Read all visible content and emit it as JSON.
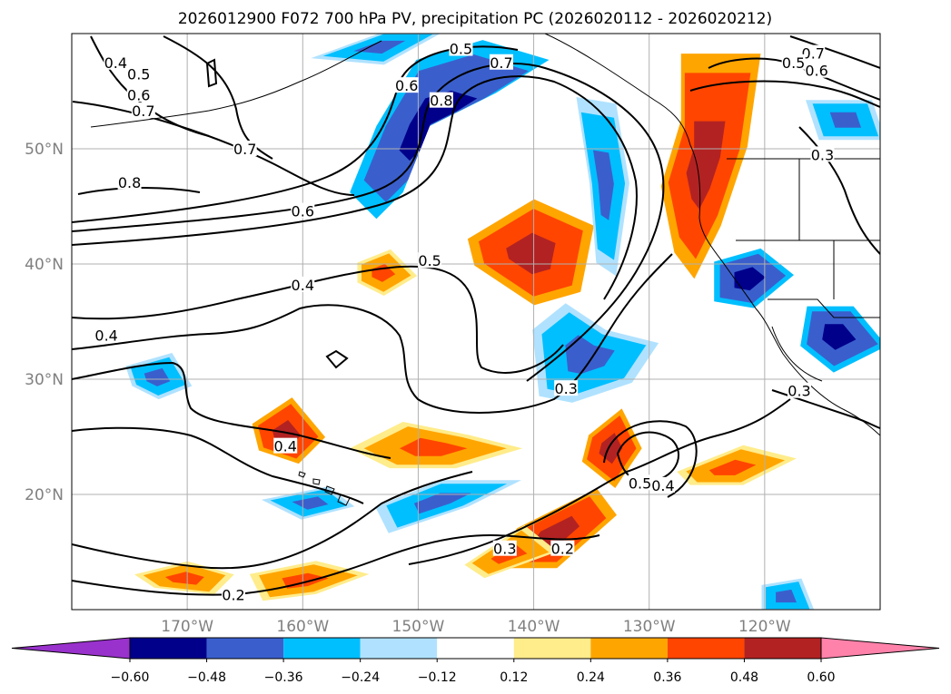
{
  "chart_data": {
    "type": "contour-map",
    "title": "2026012900 F072 700 hPa PV, precipitation PC (2026020112 - 2026020212)",
    "lon_range": [
      -180,
      -110
    ],
    "lat_range": [
      10,
      60
    ],
    "lat_ticks": [
      "20°N",
      "30°N",
      "40°N",
      "50°N"
    ],
    "lat_tick_values": [
      20,
      30,
      40,
      50
    ],
    "lon_ticks": [
      "170°W",
      "160°W",
      "150°W",
      "140°W",
      "130°W",
      "120°W"
    ],
    "lon_tick_values": [
      -170,
      -160,
      -150,
      -140,
      -130,
      -120
    ],
    "grid": true,
    "colorbar": {
      "ticks": [
        "−0.60",
        "−0.48",
        "−0.36",
        "−0.24",
        "−0.12",
        "0.12",
        "0.24",
        "0.36",
        "0.48",
        "0.60"
      ],
      "levels": [
        -0.6,
        -0.48,
        -0.36,
        -0.24,
        -0.12,
        0.12,
        0.24,
        0.36,
        0.48,
        0.6
      ],
      "colors": [
        "#9932cc",
        "#00008b",
        "#3a5fcd",
        "#00bfff",
        "#b0e2ff",
        "#ffffff",
        "#ffec8b",
        "#ffa500",
        "#ff4500",
        "#b22222",
        "#ff82ab"
      ],
      "extend": "both"
    },
    "contour_labels": [
      {
        "text": "0.5",
        "lon": -146.3,
        "lat": 58.7
      },
      {
        "text": "0.7",
        "lon": -142.8,
        "lat": 57.5
      },
      {
        "text": "0.6",
        "lon": -151.0,
        "lat": 55.5
      },
      {
        "text": "0.8",
        "lon": -148.0,
        "lat": 54.2
      },
      {
        "text": "0.4",
        "lon": -176.2,
        "lat": 57.5
      },
      {
        "text": "0.5",
        "lon": -174.2,
        "lat": 56.5
      },
      {
        "text": "0.6",
        "lon": -174.2,
        "lat": 54.7
      },
      {
        "text": "0.7",
        "lon": -173.8,
        "lat": 53.3
      },
      {
        "text": "0.7",
        "lon": -165.0,
        "lat": 50.0
      },
      {
        "text": "0.8",
        "lon": -175.0,
        "lat": 47.1
      },
      {
        "text": "0.6",
        "lon": -160.0,
        "lat": 44.6
      },
      {
        "text": "0.5",
        "lon": -149.0,
        "lat": 40.3
      },
      {
        "text": "0.4",
        "lon": -160.0,
        "lat": 38.2
      },
      {
        "text": "0.4",
        "lon": -177.0,
        "lat": 33.8
      },
      {
        "text": "0.3",
        "lon": -137.2,
        "lat": 29.2
      },
      {
        "text": "0.4",
        "lon": -161.5,
        "lat": 24.2
      },
      {
        "text": "0.5",
        "lon": -130.8,
        "lat": 21.0
      },
      {
        "text": "0.4",
        "lon": -128.8,
        "lat": 20.8
      },
      {
        "text": "0.3",
        "lon": -142.5,
        "lat": 15.3
      },
      {
        "text": "0.2",
        "lon": -137.5,
        "lat": 15.3
      },
      {
        "text": "0.2",
        "lon": -166.0,
        "lat": 11.3
      },
      {
        "text": "0.7",
        "lon": -115.8,
        "lat": 58.3
      },
      {
        "text": "0.5",
        "lon": -117.5,
        "lat": 57.5
      },
      {
        "text": "0.6",
        "lon": -115.5,
        "lat": 56.8
      },
      {
        "text": "0.3",
        "lon": -115.0,
        "lat": 49.5
      },
      {
        "text": "0.3",
        "lon": -117.0,
        "lat": 29.0
      }
    ],
    "precip_pc_patches": [
      {
        "value": 0.36,
        "peak": 0.48,
        "polygon": [
          [
            -127,
            57
          ],
          [
            -121,
            57
          ],
          [
            -122,
            50
          ],
          [
            -124,
            44
          ],
          [
            -126,
            40
          ],
          [
            -127.5,
            42
          ],
          [
            -128.5,
            47
          ],
          [
            -127,
            52
          ]
        ]
      },
      {
        "value": 0.36,
        "peak": 0.48,
        "polygon": [
          [
            -145,
            42
          ],
          [
            -140,
            45
          ],
          [
            -135.5,
            43
          ],
          [
            -136.5,
            38
          ],
          [
            -140,
            37
          ],
          [
            -144.5,
            40
          ]
        ]
      },
      {
        "value": 0.36,
        "peak": 0.48,
        "polygon": [
          [
            -143,
            14
          ],
          [
            -141,
            17
          ],
          [
            -135,
            20
          ],
          [
            -133.5,
            18
          ],
          [
            -138,
            14
          ]
        ]
      },
      {
        "value": 0.24,
        "peak": 0.36,
        "polygon": [
          [
            -145.5,
            14
          ],
          [
            -141,
            17
          ],
          [
            -138.5,
            15
          ],
          [
            -144,
            13
          ]
        ]
      },
      {
        "value": 0.36,
        "peak": 0.48,
        "polygon": [
          [
            -164,
            26
          ],
          [
            -161,
            28
          ],
          [
            -158.5,
            25
          ],
          [
            -160.5,
            23
          ],
          [
            -163.5,
            24
          ]
        ]
      },
      {
        "value": 0.36,
        "peak": 0.48,
        "polygon": [
          [
            -135,
            25
          ],
          [
            -132.5,
            27
          ],
          [
            -131,
            24
          ],
          [
            -133,
            21
          ],
          [
            -135.5,
            23
          ]
        ]
      },
      {
        "value": 0.24,
        "peak": 0.36,
        "polygon": [
          [
            -155,
            24
          ],
          [
            -151,
            26
          ],
          [
            -146,
            25
          ],
          [
            -142,
            24
          ],
          [
            -147,
            22.5
          ],
          [
            -152,
            22.5
          ]
        ]
      },
      {
        "value": 0.24,
        "peak": 0.36,
        "polygon": [
          [
            -127,
            22
          ],
          [
            -122,
            24
          ],
          [
            -118,
            23
          ],
          [
            -122,
            21
          ],
          [
            -126,
            21
          ]
        ]
      },
      {
        "value": 0.24,
        "peak": 0.36,
        "polygon": [
          [
            -164,
            13
          ],
          [
            -159,
            14
          ],
          [
            -155,
            13
          ],
          [
            -159,
            11.5
          ],
          [
            -163,
            11
          ]
        ]
      },
      {
        "value": 0.24,
        "peak": 0.36,
        "polygon": [
          [
            -174,
            13
          ],
          [
            -170,
            14
          ],
          [
            -166.5,
            13
          ],
          [
            -168,
            11.5
          ],
          [
            -172.5,
            12
          ]
        ]
      },
      {
        "value": 0.24,
        "peak": 0.36,
        "polygon": [
          [
            -155,
            40
          ],
          [
            -152.5,
            41
          ],
          [
            -150.5,
            39
          ],
          [
            -153,
            37.5
          ],
          [
            -155,
            38.5
          ]
        ]
      },
      {
        "value": -0.36,
        "peak": -0.48,
        "polygon": [
          [
            -153,
            52
          ],
          [
            -150,
            57
          ],
          [
            -145,
            58.5
          ],
          [
            -140,
            57
          ],
          [
            -144,
            54.5
          ],
          [
            -149,
            52
          ],
          [
            -151,
            47
          ],
          [
            -153,
            45
          ],
          [
            -155,
            47
          ]
        ]
      },
      {
        "value": -0.36,
        "peak": -0.48,
        "polygon": [
          [
            -124,
            40
          ],
          [
            -120.5,
            41
          ],
          [
            -118,
            39
          ],
          [
            -121,
            36.5
          ],
          [
            -124,
            37
          ]
        ]
      },
      {
        "value": -0.36,
        "peak": -0.48,
        "polygon": [
          [
            -116,
            36
          ],
          [
            -112.5,
            36
          ],
          [
            -110,
            33
          ],
          [
            -114,
            31
          ],
          [
            -116.5,
            33
          ]
        ]
      },
      {
        "value": -0.24,
        "peak": -0.36,
        "polygon": [
          [
            -139.5,
            34
          ],
          [
            -137,
            36
          ],
          [
            -134,
            34
          ],
          [
            -130,
            33
          ],
          [
            -132,
            30
          ],
          [
            -136.5,
            28.5
          ],
          [
            -139,
            29
          ]
        ]
      },
      {
        "value": -0.24,
        "peak": -0.36,
        "polygon": [
          [
            -136,
            53.5
          ],
          [
            -133,
            53
          ],
          [
            -132,
            47
          ],
          [
            -133,
            40
          ],
          [
            -134.5,
            41
          ],
          [
            -135,
            47
          ]
        ]
      },
      {
        "value": -0.24,
        "peak": -0.36,
        "polygon": [
          [
            -153,
            19
          ],
          [
            -148,
            21
          ],
          [
            -142,
            21
          ],
          [
            -146,
            19
          ],
          [
            -152,
            17
          ]
        ]
      },
      {
        "value": -0.24,
        "peak": -0.36,
        "polygon": [
          [
            -116,
            54
          ],
          [
            -111,
            54
          ],
          [
            -110,
            51
          ],
          [
            -115,
            51
          ]
        ]
      },
      {
        "value": -0.24,
        "peak": -0.36,
        "polygon": [
          [
            -175,
            31
          ],
          [
            -171.5,
            32
          ],
          [
            -170,
            29.5
          ],
          [
            -172.5,
            28.5
          ],
          [
            -174.5,
            29.5
          ]
        ]
      },
      {
        "value": -0.24,
        "peak": -0.36,
        "polygon": [
          [
            -120,
            12
          ],
          [
            -117,
            12.5
          ],
          [
            -116,
            10
          ],
          [
            -120,
            10
          ]
        ]
      },
      {
        "value": -0.24,
        "peak": -0.36,
        "polygon": [
          [
            -158.5,
            58
          ],
          [
            -153,
            60
          ],
          [
            -148.5,
            60
          ],
          [
            -153,
            57.5
          ]
        ]
      },
      {
        "value": -0.24,
        "peak": -0.36,
        "polygon": [
          [
            -163,
            19.5
          ],
          [
            -158,
            20.5
          ],
          [
            -156,
            19
          ],
          [
            -160,
            18
          ]
        ]
      }
    ]
  }
}
